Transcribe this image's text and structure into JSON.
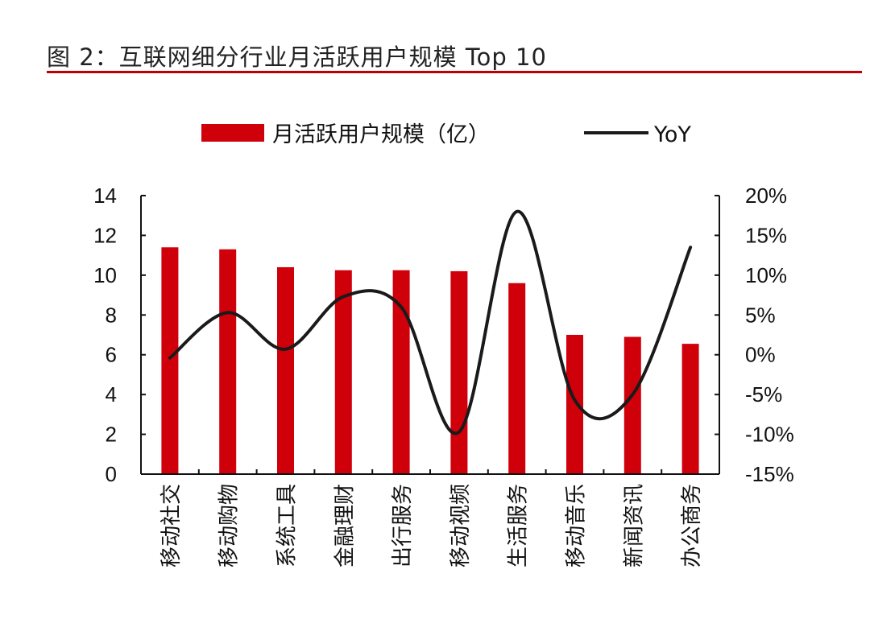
{
  "title": "图 2：互联网细分行业月活跃用户规模 Top 10",
  "chart_data": {
    "type": "bar",
    "categories": [
      "移动社交",
      "移动购物",
      "系统工具",
      "金融理财",
      "出行服务",
      "移动视频",
      "生活服务",
      "移动音乐",
      "新闻资讯",
      "办公商务"
    ],
    "series": [
      {
        "name": "月活跃用户规模（亿）",
        "type": "bar",
        "axis": "left",
        "color": "#d0000a",
        "values": [
          11.4,
          11.3,
          10.4,
          10.25,
          10.25,
          10.2,
          9.6,
          7.0,
          6.9,
          6.55
        ]
      },
      {
        "name": "YoY",
        "type": "line",
        "axis": "right",
        "color": "#1a1a1a",
        "values": [
          -0.4,
          5.3,
          0.7,
          7.3,
          6.0,
          -9.7,
          18.0,
          -5.7,
          -5.0,
          13.5
        ]
      }
    ],
    "left_axis": {
      "ylim": [
        0,
        14
      ],
      "ticks": [
        "0",
        "2",
        "4",
        "6",
        "8",
        "10",
        "12",
        "14"
      ]
    },
    "right_axis": {
      "ylim": [
        -15,
        20
      ],
      "unit": "%",
      "ticks": [
        "-15%",
        "-10%",
        "-5%",
        "0%",
        "5%",
        "10%",
        "15%",
        "20%"
      ]
    },
    "legend_placement": "top",
    "grid": false
  }
}
